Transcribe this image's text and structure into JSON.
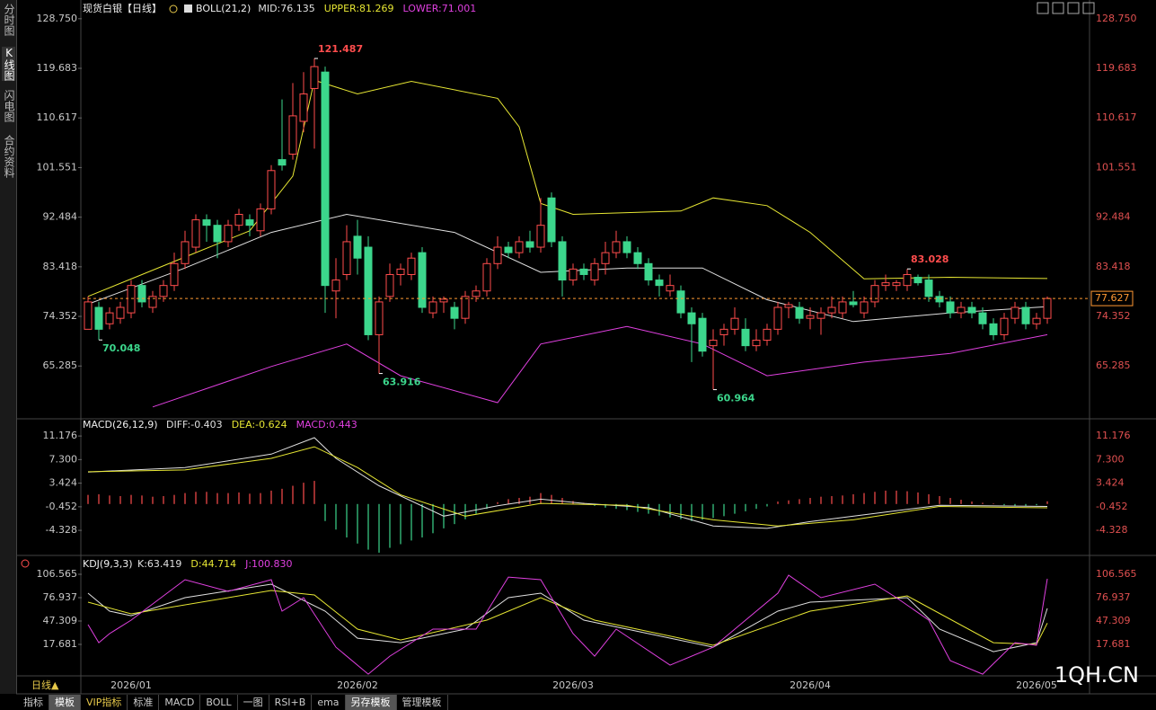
{
  "sidebar_tabs": [
    "分时图",
    "K线图",
    "闪电图",
    "合约资料"
  ],
  "bottom_tabs": [
    "指标",
    "模板",
    "VIP指标",
    "标准",
    "MACD",
    "BOLL",
    "一图",
    "RSI+B",
    "ema",
    "另存模板",
    "管理模板"
  ],
  "period": "日线▲",
  "watermark": "1QH.CN",
  "chart_data": [
    {
      "type": "candlestick",
      "title": "现货白银【日线】",
      "indicator": "BOLL(21,2)",
      "up_color": "#ff4d4d",
      "down_color": "#3cd68c",
      "ylim": [
        55.8,
        130.2
      ],
      "yticks": [
        65.285,
        74.352,
        83.418,
        92.484,
        101.551,
        110.617,
        119.683,
        {
          "value": 128.75,
          "label": "128.750"
        }
      ],
      "xticks": [
        {
          "value": 4,
          "label": "2026/01"
        },
        {
          "value": 25,
          "label": "2026/02"
        },
        {
          "value": 45,
          "label": "2026/03"
        },
        {
          "value": 67,
          "label": "2026/04"
        },
        {
          "value": 88,
          "label": "2026/05"
        }
      ],
      "candles": [
        [
          72,
          78,
          72,
          77
        ],
        [
          76,
          77,
          70.048,
          72
        ],
        [
          73,
          76,
          72,
          75
        ],
        [
          74,
          77,
          73,
          76
        ],
        [
          75,
          81,
          74,
          80
        ],
        [
          80,
          81,
          76,
          77
        ],
        [
          76,
          79,
          75,
          78
        ],
        [
          78,
          81,
          77,
          80
        ],
        [
          80,
          86,
          79,
          84
        ],
        [
          84,
          90,
          83,
          88
        ],
        [
          87,
          93,
          86,
          92
        ],
        [
          92,
          93,
          88,
          91
        ],
        [
          91,
          92,
          85,
          88
        ],
        [
          88,
          92,
          87,
          91
        ],
        [
          91,
          94,
          90,
          93
        ],
        [
          92,
          93,
          89,
          91
        ],
        [
          90,
          95,
          89,
          94
        ],
        [
          94,
          102,
          93,
          101
        ],
        [
          103,
          114,
          101,
          102
        ],
        [
          104,
          117,
          103,
          111
        ],
        [
          110,
          119,
          108,
          115
        ],
        [
          116,
          121.487,
          105,
          120
        ],
        [
          119,
          120,
          75,
          80
        ],
        [
          79,
          85,
          74,
          81
        ],
        [
          82,
          91,
          81,
          88
        ],
        [
          89,
          92,
          82,
          85
        ],
        [
          87,
          89,
          70,
          71
        ],
        [
          71,
          78,
          63.916,
          77
        ],
        [
          78,
          84,
          77,
          82
        ],
        [
          82,
          84,
          80,
          83
        ],
        [
          82,
          86,
          81,
          85
        ],
        [
          86,
          87,
          75,
          76
        ],
        [
          75,
          78,
          74,
          77
        ],
        [
          77,
          78,
          75,
          77.5
        ],
        [
          76,
          77,
          72,
          74
        ],
        [
          74,
          79,
          73,
          78
        ],
        [
          78,
          80,
          77,
          79
        ],
        [
          79,
          85,
          78,
          84
        ],
        [
          84,
          89,
          83,
          87
        ],
        [
          87,
          88,
          85,
          86
        ],
        [
          86,
          89,
          85,
          88
        ],
        [
          88,
          90,
          86,
          87
        ],
        [
          87,
          96,
          86,
          91
        ],
        [
          96,
          97,
          87,
          88
        ],
        [
          88,
          89,
          78,
          81
        ],
        [
          81,
          84,
          80,
          83
        ],
        [
          83,
          84,
          81,
          82
        ],
        [
          81,
          85,
          80,
          84
        ],
        [
          84,
          88,
          82,
          86
        ],
        [
          86,
          90,
          85,
          88
        ],
        [
          88,
          89,
          85,
          86
        ],
        [
          86,
          87,
          83,
          84
        ],
        [
          84,
          85,
          80,
          81
        ],
        [
          81,
          82,
          78,
          80
        ],
        [
          79,
          82,
          78,
          80
        ],
        [
          79,
          80,
          74,
          75
        ],
        [
          75,
          76,
          66,
          73
        ],
        [
          74,
          75,
          67,
          68
        ],
        [
          69,
          72,
          60.964,
          70
        ],
        [
          71,
          73,
          69,
          72
        ],
        [
          72,
          76,
          71,
          74
        ],
        [
          72,
          74,
          68,
          69
        ],
        [
          69,
          72,
          68,
          70
        ],
        [
          70,
          73,
          69,
          72
        ],
        [
          72,
          77,
          71,
          76
        ],
        [
          76,
          77,
          74,
          76.5
        ],
        [
          76,
          77,
          73,
          74
        ],
        [
          74,
          76,
          72,
          74.5
        ],
        [
          74,
          76,
          71,
          75
        ],
        [
          75,
          78,
          74,
          76
        ],
        [
          75,
          78,
          74,
          77
        ],
        [
          77,
          79,
          76,
          76.5
        ],
        [
          75,
          78,
          74,
          77
        ],
        [
          77,
          81,
          76,
          80
        ],
        [
          80,
          82,
          79,
          80.5
        ],
        [
          80,
          81,
          79,
          80.5
        ],
        [
          80,
          83.028,
          79,
          82
        ],
        [
          81.5,
          82,
          80,
          80.5
        ],
        [
          81,
          82,
          77,
          78
        ],
        [
          78,
          79,
          76,
          77
        ],
        [
          77,
          78,
          74,
          75
        ],
        [
          75,
          77,
          74,
          76
        ],
        [
          76,
          77,
          74,
          75
        ],
        [
          75,
          76,
          72,
          73
        ],
        [
          73,
          74,
          70,
          71
        ],
        [
          71,
          75,
          70,
          74
        ],
        [
          74,
          77,
          73,
          76
        ],
        [
          76,
          77,
          72,
          73
        ],
        [
          73,
          75,
          72,
          74
        ],
        [
          74,
          78,
          73,
          77.627
        ]
      ],
      "extremes": [
        121.487,
        70.048,
        63.916,
        60.964,
        83.028
      ],
      "last_price": 77.627,
      "last_price_color": "#ff9933",
      "series": [
        {
          "name": "MID:76.135",
          "color": "#e0e0e0",
          "x": [
            0,
            9,
            17,
            24,
            34,
            42,
            50,
            57,
            63,
            71,
            80,
            89
          ],
          "values": [
            76.6,
            83.2,
            89.7,
            93,
            89.7,
            82.4,
            83.2,
            83.2,
            77.4,
            73.4,
            75,
            76.135
          ]
        },
        {
          "name": "UPPER:81.269",
          "color": "#e6e633",
          "x": [
            0,
            5,
            10,
            15,
            19,
            21,
            25,
            30,
            38,
            40,
            42,
            45,
            55,
            58,
            63,
            67,
            72,
            80,
            89
          ],
          "values": [
            78,
            82,
            86,
            90,
            100,
            117.5,
            115,
            117.3,
            114.2,
            109,
            95,
            93,
            93.6,
            96,
            94.6,
            89.7,
            81.2,
            81.5,
            81.269
          ]
        },
        {
          "name": "LOWER:71.001",
          "color": "#e040e0",
          "x": [
            6,
            17,
            24,
            29,
            38,
            42,
            50,
            57,
            63,
            72,
            80,
            89
          ],
          "values": [
            57.8,
            65.2,
            69.3,
            63.5,
            58.6,
            69.3,
            72.5,
            69.3,
            63.5,
            66,
            67.6,
            71.001
          ]
        }
      ]
    },
    {
      "type": "macd",
      "indicator": "MACD(26,12,9)",
      "ylim": [
        -8.3,
        14.0
      ],
      "yticks": [
        -4.328,
        -0.452,
        3.424,
        {
          "value": 7.3,
          "label": "7.300"
        },
        11.176
      ],
      "histogram": {
        "name": "MACD:0.443",
        "color": "#e040e0",
        "up_color": "#ff4d4d",
        "down_color": "#3cd68c",
        "values": [
          1.5,
          1.6,
          1.4,
          1.3,
          1.5,
          1.4,
          1.2,
          1.3,
          1.5,
          1.8,
          2.0,
          2.0,
          1.8,
          1.8,
          1.9,
          1.7,
          1.8,
          2.2,
          2.5,
          3.0,
          3.5,
          3.8,
          -2.8,
          -4.2,
          -5.5,
          -6.5,
          -7.5,
          -8.0,
          -7.2,
          -6.6,
          -6.0,
          -5.5,
          -4.8,
          -4.0,
          -3.3,
          -2.5,
          -1.6,
          -0.8,
          0.3,
          0.8,
          1.0,
          1.2,
          1.8,
          1.5,
          1.0,
          0.5,
          0.2,
          -0.3,
          -0.6,
          -0.8,
          -1.0,
          -1.3,
          -1.6,
          -1.9,
          -2.2,
          -2.5,
          -2.8,
          -2.6,
          -2.3,
          -2.0,
          -1.6,
          -1.2,
          -0.8,
          -0.4,
          0.4,
          0.6,
          0.8,
          1.0,
          1.2,
          1.3,
          1.4,
          1.6,
          1.8,
          2.0,
          2.2,
          2.2,
          2.1,
          1.9,
          1.6,
          1.3,
          1.0,
          0.7,
          0.4,
          0.2,
          0.1,
          -0.2,
          -0.3,
          -0.3,
          -0.2,
          0.443
        ]
      },
      "series": [
        {
          "name": "DIFF:-0.403",
          "color": "#e0e0e0",
          "x": [
            0,
            9,
            17,
            21,
            23,
            27,
            33,
            38,
            42,
            46,
            52,
            58,
            63,
            67,
            75,
            79,
            89
          ],
          "values": [
            5.26,
            6.0,
            8.2,
            10.9,
            7.5,
            3.0,
            -2.0,
            -0.3,
            0.8,
            0.1,
            -0.6,
            -3.6,
            -4.0,
            -2.9,
            -1.1,
            -0.2,
            -0.403
          ]
        },
        {
          "name": "DEA:-0.624",
          "color": "#e6e633",
          "x": [
            0,
            9,
            17,
            21,
            25,
            29,
            35,
            42,
            50,
            58,
            64,
            71,
            79,
            89
          ],
          "values": [
            5.3,
            5.6,
            7.5,
            9.4,
            6.0,
            1.5,
            -2.0,
            0.1,
            -0.2,
            -2.6,
            -3.6,
            -2.6,
            -0.4,
            -0.624
          ]
        }
      ]
    },
    {
      "type": "line",
      "indicator": "KDJ(9,3,3)",
      "ylim": [
        -22.2,
        128.2
      ],
      "yticks": [
        17.681,
        47.309,
        76.937,
        106.565
      ],
      "series": [
        {
          "name": "K:63.419",
          "color": "#e0e0e0",
          "x": [
            0,
            2,
            4,
            9,
            17,
            22,
            25,
            29,
            35,
            39,
            42,
            46,
            50,
            58,
            64,
            67,
            76,
            79,
            84,
            88,
            89
          ],
          "values": [
            82.6,
            59.8,
            54,
            76.9,
            94,
            59.8,
            25.5,
            19.9,
            37,
            76.9,
            82.6,
            48.4,
            37,
            14.2,
            59.8,
            71.2,
            76.9,
            37,
            8.5,
            19.9,
            63.419
          ]
        },
        {
          "name": "D:44.714",
          "color": "#e6e633",
          "x": [
            0,
            4,
            17,
            21,
            25,
            29,
            37,
            42,
            47,
            58,
            67,
            76,
            84,
            88,
            89
          ],
          "values": [
            71.2,
            56.4,
            86,
            80.3,
            37,
            23.3,
            48.4,
            76.9,
            48.4,
            16.5,
            59.8,
            79.2,
            19.9,
            17.7,
            44.714
          ]
        },
        {
          "name": "J:100.830",
          "color": "#e040e0",
          "x": [
            0,
            1,
            2,
            4,
            9,
            13,
            17,
            18,
            20,
            23,
            26,
            28,
            32,
            36,
            39,
            42,
            45,
            47,
            49,
            54,
            58,
            64,
            65,
            68,
            73,
            75,
            78,
            80,
            83,
            86,
            88,
            89
          ],
          "values": [
            42.7,
            19.9,
            31.3,
            48.4,
            99.7,
            84.9,
            99.7,
            59.8,
            76.9,
            14.2,
            -20,
            2.8,
            37,
            37,
            103,
            99.7,
            31.3,
            2.8,
            37,
            -8.6,
            14.2,
            82.6,
            105.4,
            76.9,
            94,
            76.9,
            48.4,
            -3,
            -20,
            19.9,
            16.5,
            100.83
          ]
        }
      ]
    }
  ]
}
